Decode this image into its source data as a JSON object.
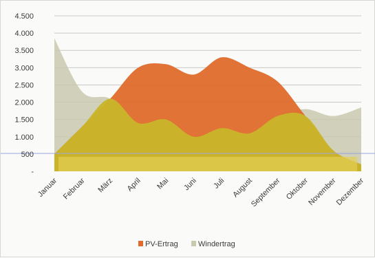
{
  "chart_data": {
    "type": "area",
    "categories": [
      "Januar",
      "Februar",
      "März",
      "April",
      "Mai",
      "Juni",
      "Juli",
      "August",
      "September",
      "Oktober",
      "November",
      "Dezember"
    ],
    "ylim": [
      0,
      4500
    ],
    "yticks": [
      "4.500",
      "4.000",
      "3.500",
      "3.000",
      "2.500",
      "2.000",
      "1.500",
      "1.000",
      "500",
      "-"
    ],
    "ytick_values": [
      4500,
      4000,
      3500,
      3000,
      2500,
      2000,
      1500,
      1000,
      500,
      0
    ],
    "grid": true,
    "legend_position": "bottom",
    "series": [
      {
        "name": "PV-Ertrag",
        "color": "#e06b2c",
        "values": [
          500,
          1300,
          2100,
          3000,
          3100,
          2800,
          3300,
          3000,
          2600,
          1600,
          600,
          200
        ]
      },
      {
        "name": "Windertrag",
        "color": "#c9c9b0",
        "values": [
          3850,
          2300,
          2100,
          1400,
          1500,
          1000,
          1250,
          1100,
          1600,
          1800,
          1600,
          1850
        ]
      }
    ]
  }
}
